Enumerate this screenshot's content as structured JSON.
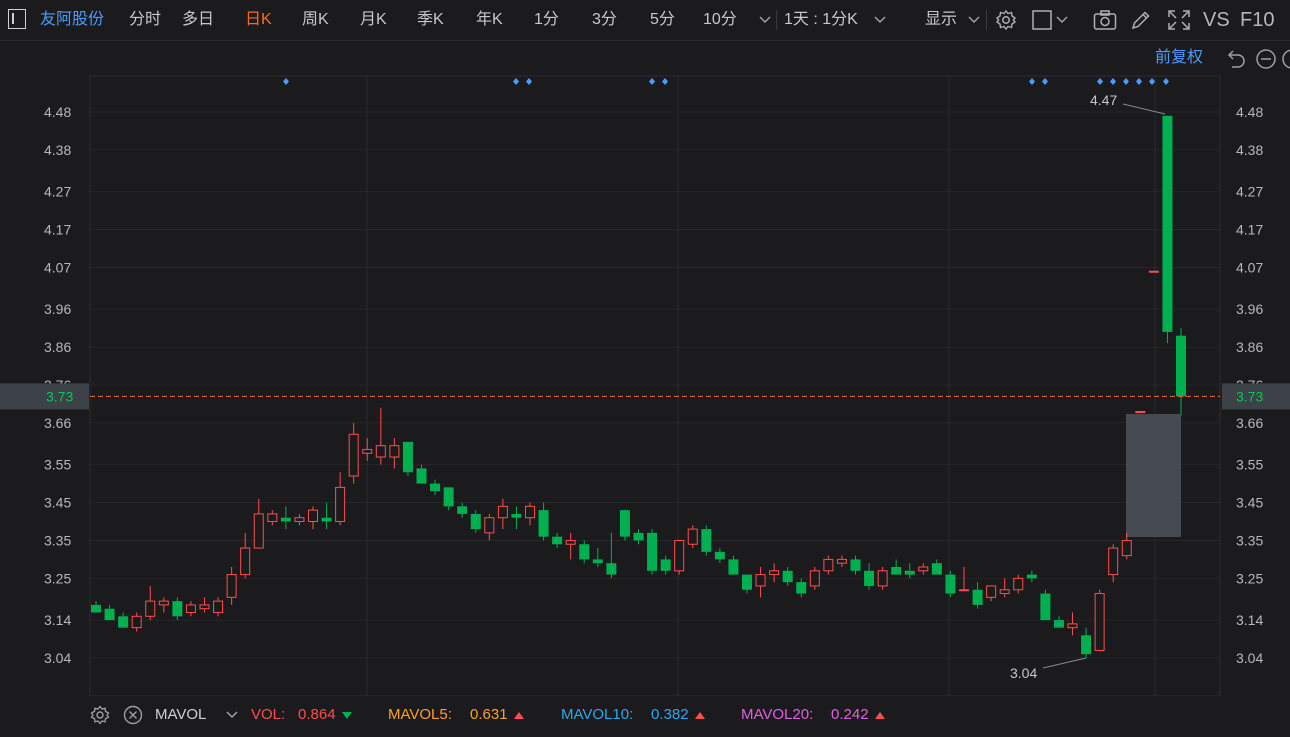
{
  "toolbar": {
    "stock_name": "友阿股份",
    "periods": [
      "分时",
      "多日",
      "日K",
      "周K",
      "月K",
      "季K",
      "年K",
      "1分",
      "3分",
      "5分",
      "10分"
    ],
    "active_period": "日K",
    "combo": "1天 : 1分K",
    "display": "显示",
    "vs_label": "VS",
    "f10_label": "F10"
  },
  "subbar": {
    "adjust": "前复权"
  },
  "price_axis": {
    "ticks": [
      "4.48",
      "4.38",
      "4.27",
      "4.17",
      "4.07",
      "3.96",
      "3.86",
      "3.76",
      "3.66",
      "3.55",
      "3.45",
      "3.35",
      "3.25",
      "3.14",
      "3.04"
    ],
    "current": "3.73"
  },
  "annotations": {
    "high": "4.47",
    "low": "3.04"
  },
  "indicator": {
    "name": "MAVOL",
    "vol_label": "VOL:",
    "vol_value": "0.864",
    "ma5_label": "MAVOL5:",
    "ma5_value": "0.631",
    "ma10_label": "MAVOL10:",
    "ma10_value": "0.382",
    "ma20_label": "MAVOL20:",
    "ma20_value": "0.242"
  },
  "colors": {
    "up": "#ff4d4d",
    "down": "#00b050",
    "accent": "#ff6a1e",
    "link": "#4a9dff",
    "ma5": "#ff9f2e",
    "ma10": "#2aa8f2",
    "ma20": "#e060e0"
  },
  "chart_data": {
    "type": "candlestick",
    "price_range": [
      2.99,
      4.5
    ],
    "current_price": 3.73,
    "candles": [
      {
        "o": 3.18,
        "h": 3.19,
        "l": 3.16,
        "c": 3.16
      },
      {
        "o": 3.17,
        "h": 3.18,
        "l": 3.14,
        "c": 3.14
      },
      {
        "o": 3.15,
        "h": 3.16,
        "l": 3.12,
        "c": 3.12
      },
      {
        "o": 3.12,
        "h": 3.16,
        "l": 3.11,
        "c": 3.15
      },
      {
        "o": 3.15,
        "h": 3.23,
        "l": 3.14,
        "c": 3.19
      },
      {
        "o": 3.18,
        "h": 3.2,
        "l": 3.16,
        "c": 3.19
      },
      {
        "o": 3.19,
        "h": 3.2,
        "l": 3.14,
        "c": 3.15
      },
      {
        "o": 3.16,
        "h": 3.19,
        "l": 3.15,
        "c": 3.18
      },
      {
        "o": 3.17,
        "h": 3.2,
        "l": 3.16,
        "c": 3.18
      },
      {
        "o": 3.16,
        "h": 3.2,
        "l": 3.15,
        "c": 3.19
      },
      {
        "o": 3.2,
        "h": 3.28,
        "l": 3.18,
        "c": 3.26
      },
      {
        "o": 3.26,
        "h": 3.37,
        "l": 3.25,
        "c": 3.33
      },
      {
        "o": 3.33,
        "h": 3.46,
        "l": 3.33,
        "c": 3.42
      },
      {
        "o": 3.4,
        "h": 3.43,
        "l": 3.39,
        "c": 3.42
      },
      {
        "o": 3.41,
        "h": 3.44,
        "l": 3.38,
        "c": 3.4
      },
      {
        "o": 3.4,
        "h": 3.42,
        "l": 3.39,
        "c": 3.41
      },
      {
        "o": 3.4,
        "h": 3.44,
        "l": 3.38,
        "c": 3.43
      },
      {
        "o": 3.41,
        "h": 3.45,
        "l": 3.38,
        "c": 3.4
      },
      {
        "o": 3.4,
        "h": 3.53,
        "l": 3.39,
        "c": 3.49
      },
      {
        "o": 3.52,
        "h": 3.66,
        "l": 3.5,
        "c": 3.63
      },
      {
        "o": 3.58,
        "h": 3.62,
        "l": 3.56,
        "c": 3.59
      },
      {
        "o": 3.57,
        "h": 3.7,
        "l": 3.55,
        "c": 3.6
      },
      {
        "o": 3.57,
        "h": 3.62,
        "l": 3.54,
        "c": 3.6
      },
      {
        "o": 3.61,
        "h": 3.61,
        "l": 3.52,
        "c": 3.53
      },
      {
        "o": 3.54,
        "h": 3.55,
        "l": 3.5,
        "c": 3.5
      },
      {
        "o": 3.5,
        "h": 3.51,
        "l": 3.47,
        "c": 3.48
      },
      {
        "o": 3.49,
        "h": 3.49,
        "l": 3.43,
        "c": 3.44
      },
      {
        "o": 3.44,
        "h": 3.45,
        "l": 3.41,
        "c": 3.42
      },
      {
        "o": 3.42,
        "h": 3.43,
        "l": 3.37,
        "c": 3.38
      },
      {
        "o": 3.37,
        "h": 3.42,
        "l": 3.35,
        "c": 3.41
      },
      {
        "o": 3.41,
        "h": 3.46,
        "l": 3.38,
        "c": 3.44
      },
      {
        "o": 3.42,
        "h": 3.44,
        "l": 3.38,
        "c": 3.41
      },
      {
        "o": 3.41,
        "h": 3.45,
        "l": 3.39,
        "c": 3.44
      },
      {
        "o": 3.43,
        "h": 3.45,
        "l": 3.35,
        "c": 3.36
      },
      {
        "o": 3.36,
        "h": 3.37,
        "l": 3.33,
        "c": 3.34
      },
      {
        "o": 3.34,
        "h": 3.37,
        "l": 3.3,
        "c": 3.35
      },
      {
        "o": 3.34,
        "h": 3.35,
        "l": 3.29,
        "c": 3.3
      },
      {
        "o": 3.3,
        "h": 3.33,
        "l": 3.28,
        "c": 3.29
      },
      {
        "o": 3.29,
        "h": 3.37,
        "l": 3.25,
        "c": 3.26
      },
      {
        "o": 3.43,
        "h": 3.43,
        "l": 3.35,
        "c": 3.36
      },
      {
        "o": 3.37,
        "h": 3.38,
        "l": 3.34,
        "c": 3.35
      },
      {
        "o": 3.37,
        "h": 3.38,
        "l": 3.26,
        "c": 3.27
      },
      {
        "o": 3.3,
        "h": 3.31,
        "l": 3.26,
        "c": 3.27
      },
      {
        "o": 3.27,
        "h": 3.35,
        "l": 3.26,
        "c": 3.35
      },
      {
        "o": 3.34,
        "h": 3.39,
        "l": 3.33,
        "c": 3.38
      },
      {
        "o": 3.38,
        "h": 3.39,
        "l": 3.31,
        "c": 3.32
      },
      {
        "o": 3.32,
        "h": 3.33,
        "l": 3.29,
        "c": 3.3
      },
      {
        "o": 3.3,
        "h": 3.31,
        "l": 3.26,
        "c": 3.26
      },
      {
        "o": 3.26,
        "h": 3.26,
        "l": 3.21,
        "c": 3.22
      },
      {
        "o": 3.23,
        "h": 3.28,
        "l": 3.2,
        "c": 3.26
      },
      {
        "o": 3.26,
        "h": 3.29,
        "l": 3.24,
        "c": 3.27
      },
      {
        "o": 3.27,
        "h": 3.28,
        "l": 3.23,
        "c": 3.24
      },
      {
        "o": 3.24,
        "h": 3.25,
        "l": 3.2,
        "c": 3.21
      },
      {
        "o": 3.23,
        "h": 3.28,
        "l": 3.22,
        "c": 3.27
      },
      {
        "o": 3.27,
        "h": 3.31,
        "l": 3.26,
        "c": 3.3
      },
      {
        "o": 3.29,
        "h": 3.31,
        "l": 3.28,
        "c": 3.3
      },
      {
        "o": 3.3,
        "h": 3.31,
        "l": 3.26,
        "c": 3.27
      },
      {
        "o": 3.27,
        "h": 3.29,
        "l": 3.22,
        "c": 3.23
      },
      {
        "o": 3.23,
        "h": 3.28,
        "l": 3.22,
        "c": 3.27
      },
      {
        "o": 3.28,
        "h": 3.3,
        "l": 3.26,
        "c": 3.26
      },
      {
        "o": 3.27,
        "h": 3.29,
        "l": 3.25,
        "c": 3.26
      },
      {
        "o": 3.27,
        "h": 3.29,
        "l": 3.26,
        "c": 3.28
      },
      {
        "o": 3.29,
        "h": 3.3,
        "l": 3.26,
        "c": 3.26
      },
      {
        "o": 3.26,
        "h": 3.27,
        "l": 3.2,
        "c": 3.21
      },
      {
        "o": 3.22,
        "h": 3.28,
        "l": 3.22,
        "c": 3.22
      },
      {
        "o": 3.22,
        "h": 3.24,
        "l": 3.17,
        "c": 3.18
      },
      {
        "o": 3.2,
        "h": 3.23,
        "l": 3.19,
        "c": 3.23
      },
      {
        "o": 3.21,
        "h": 3.25,
        "l": 3.2,
        "c": 3.22
      },
      {
        "o": 3.22,
        "h": 3.26,
        "l": 3.21,
        "c": 3.25
      },
      {
        "o": 3.26,
        "h": 3.27,
        "l": 3.24,
        "c": 3.25
      },
      {
        "o": 3.21,
        "h": 3.22,
        "l": 3.14,
        "c": 3.14
      },
      {
        "o": 3.14,
        "h": 3.15,
        "l": 3.12,
        "c": 3.12
      },
      {
        "o": 3.12,
        "h": 3.16,
        "l": 3.1,
        "c": 3.13
      },
      {
        "o": 3.1,
        "h": 3.12,
        "l": 3.04,
        "c": 3.05
      },
      {
        "o": 3.06,
        "h": 3.22,
        "l": 3.06,
        "c": 3.21
      },
      {
        "o": 3.26,
        "h": 3.34,
        "l": 3.24,
        "c": 3.33
      },
      {
        "o": 3.31,
        "h": 3.37,
        "l": 3.3,
        "c": 3.35
      },
      {
        "o": 3.69,
        "h": 3.69,
        "l": 3.69,
        "c": 3.69
      },
      {
        "o": 4.06,
        "h": 4.06,
        "l": 4.06,
        "c": 4.06
      },
      {
        "o": 4.47,
        "h": 4.47,
        "l": 3.87,
        "c": 3.9
      },
      {
        "o": 3.89,
        "h": 3.91,
        "l": 3.68,
        "c": 3.73
      }
    ]
  }
}
